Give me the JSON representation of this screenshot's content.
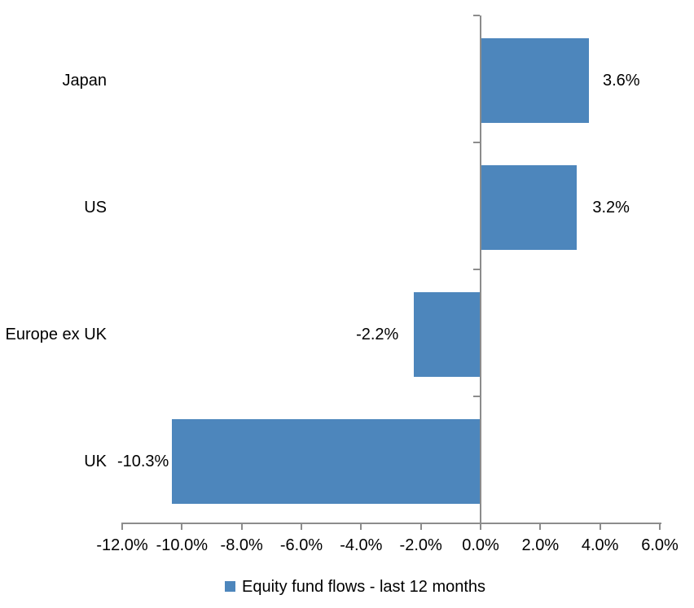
{
  "chart_data": {
    "type": "bar",
    "orientation": "horizontal",
    "title": "",
    "xlabel": "",
    "ylabel": "",
    "grid": false,
    "categories": [
      "Japan",
      "US",
      "Europe ex UK",
      "UK"
    ],
    "series": [
      {
        "name": "Equity fund flows - last 12 months",
        "values": [
          3.6,
          3.2,
          -2.2,
          -10.3
        ],
        "value_labels": [
          "3.6%",
          "3.2%",
          "-2.2%",
          "-10.3%"
        ]
      }
    ],
    "xlim": [
      -12,
      6
    ],
    "x_ticks": [
      -12,
      -10,
      -8,
      -6,
      -4,
      -2,
      0,
      2,
      4,
      6
    ],
    "x_tick_labels": [
      "-12.0%",
      "-10.0%",
      "-8.0%",
      "-6.0%",
      "-4.0%",
      "-2.0%",
      "0.0%",
      "2.0%",
      "4.0%",
      "6.0%"
    ],
    "legend_position": "bottom",
    "colors": {
      "bar": "#4D86BC",
      "axis": "#8C8C8C",
      "text": "#000000",
      "background": "#FFFFFF"
    }
  },
  "legend": {
    "label": "Equity fund flows - last 12 months"
  }
}
